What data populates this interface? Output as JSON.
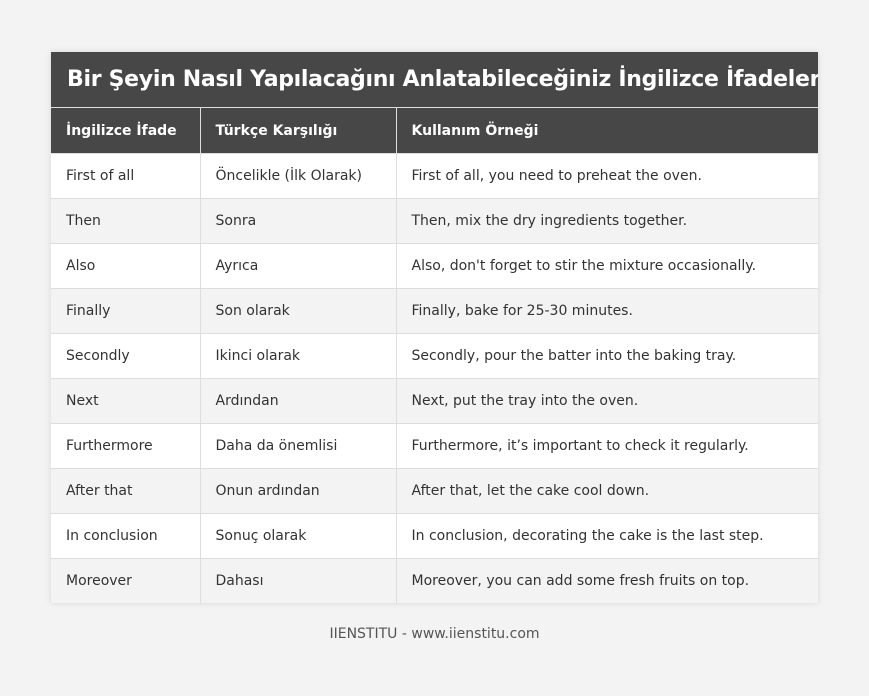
{
  "title": "Bir Şeyin Nasıl Yapılacağını Anlatabileceğiniz İngilizce İfadeler",
  "headers": [
    "İngilizce İfade",
    "Türkçe Karşılığı",
    "Kullanım Örneği"
  ],
  "rows": [
    [
      "First of all",
      "Öncelikle (İlk Olarak)",
      "First of all, you need to preheat the oven."
    ],
    [
      "Then",
      "Sonra",
      "Then, mix the dry ingredients together."
    ],
    [
      "Also",
      "Ayrıca",
      "Also, don't forget to stir the mixture occasionally."
    ],
    [
      "Finally",
      "Son olarak",
      "Finally, bake for 25-30 minutes."
    ],
    [
      "Secondly",
      "Ikinci olarak",
      "Secondly, pour the batter into the baking tray."
    ],
    [
      "Next",
      "Ardından",
      "Next, put the tray into the oven."
    ],
    [
      "Furthermore",
      "Daha da önemlisi",
      "Furthermore, it’s important to check it regularly."
    ],
    [
      "After that",
      "Onun ardından",
      "After that, let the cake cool down."
    ],
    [
      "In conclusion",
      "Sonuç olarak",
      "In conclusion, decorating the cake is the last step."
    ],
    [
      "Moreover",
      "Dahası",
      "Moreover, you can add some fresh fruits on top."
    ]
  ],
  "footer": "IIENSTITU - www.iienstitu.com"
}
